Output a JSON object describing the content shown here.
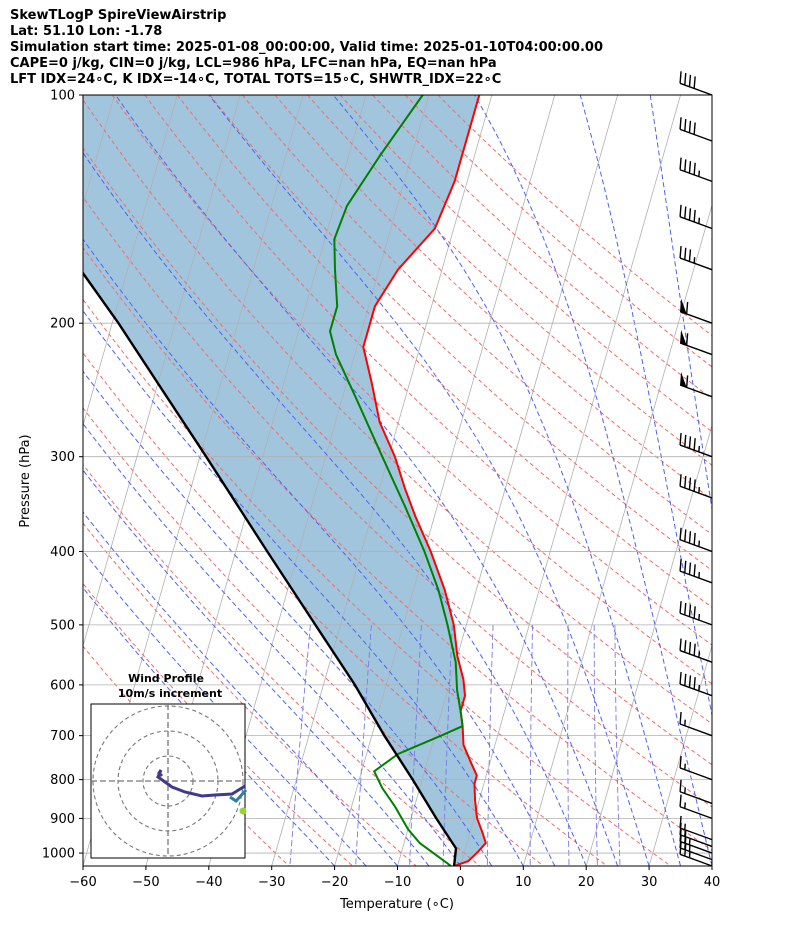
{
  "header": {
    "line1": "SkewTLogP SpireViewAirstrip",
    "line2": "Lat: 51.10   Lon: -1.78",
    "line3": "Simulation start time: 2025-01-08_00:00:00, Valid time: 2025-01-10T04:00:00.00",
    "line4": "CAPE=0 j/kg, CIN=0 j/kg, LCL=986 hPa, LFC=nan hPa, EQ=nan hPa",
    "line5": "LFT IDX=24∘C, K IDX=-14∘C, TOTAL TOTS=15∘C, SHWTR_IDX=22∘C"
  },
  "colors": {
    "temperature": "#ff0000",
    "dewpoint": "#008000",
    "parcel": "#000000",
    "cape_shading": "#a2c5de",
    "dry_adiabat": "#f26b6b",
    "moist_adiabat": "#4f62f2",
    "mixing_ratio": "#7a79e6",
    "isotherm": "#b0b0b0"
  },
  "chart_data": {
    "type": "line",
    "title": "",
    "xlabel": "Temperature (∘C)",
    "ylabel": "Pressure (hPa)",
    "xlim": [
      -60,
      40
    ],
    "ylim": [
      1040,
      100
    ],
    "y_scale": "log",
    "x_ticks": [
      "−60",
      "−50",
      "−40",
      "−30",
      "−20",
      "−10",
      "0",
      "10",
      "20",
      "30",
      "40"
    ],
    "y_ticks": [
      "100",
      "200",
      "300",
      "400",
      "500",
      "600",
      "700",
      "800",
      "900",
      "1000"
    ],
    "grid": true,
    "series": [
      {
        "name": "temperature",
        "points": [
          [
            1040,
            -1
          ],
          [
            1025,
            1
          ],
          [
            1000,
            2
          ],
          [
            970,
            3
          ],
          [
            940,
            2
          ],
          [
            900,
            0.5
          ],
          [
            850,
            -0.7
          ],
          [
            810,
            -1.5
          ],
          [
            790,
            -1.5
          ],
          [
            760,
            -3
          ],
          [
            720,
            -5
          ],
          [
            680,
            -6
          ],
          [
            650,
            -7
          ],
          [
            620,
            -7
          ],
          [
            590,
            -8
          ],
          [
            550,
            -10
          ],
          [
            500,
            -12
          ],
          [
            450,
            -15
          ],
          [
            400,
            -19
          ],
          [
            360,
            -23
          ],
          [
            330,
            -26
          ],
          [
            300,
            -29
          ],
          [
            270,
            -33
          ],
          [
            240,
            -36
          ],
          [
            215,
            -39
          ],
          [
            205,
            -39
          ],
          [
            190,
            -39
          ],
          [
            170,
            -37
          ],
          [
            150,
            -33
          ],
          [
            130,
            -32
          ],
          [
            100,
            -32
          ]
        ]
      },
      {
        "name": "dewpoint",
        "points": [
          [
            1040,
            -1.5
          ],
          [
            1010,
            -4
          ],
          [
            970,
            -7.5
          ],
          [
            930,
            -10
          ],
          [
            870,
            -13
          ],
          [
            820,
            -16
          ],
          [
            780,
            -18
          ],
          [
            740,
            -15
          ],
          [
            700,
            -9
          ],
          [
            680,
            -6
          ],
          [
            650,
            -7
          ],
          [
            610,
            -8.5
          ],
          [
            560,
            -10
          ],
          [
            500,
            -13
          ],
          [
            450,
            -16
          ],
          [
            400,
            -20
          ],
          [
            350,
            -25
          ],
          [
            300,
            -31
          ],
          [
            250,
            -38
          ],
          [
            220,
            -43
          ],
          [
            205,
            -45
          ],
          [
            190,
            -45
          ],
          [
            170,
            -47
          ],
          [
            155,
            -48.5
          ],
          [
            140,
            -48
          ],
          [
            120,
            -45
          ],
          [
            100,
            -41
          ]
        ]
      },
      {
        "name": "parcel",
        "points": [
          [
            1040,
            -1
          ],
          [
            986,
            -1.5
          ],
          [
            900,
            -6
          ],
          [
            800,
            -11.5
          ],
          [
            700,
            -18
          ],
          [
            600,
            -25
          ],
          [
            500,
            -34
          ],
          [
            400,
            -45
          ],
          [
            300,
            -59
          ],
          [
            250,
            -68
          ],
          [
            200,
            -79
          ],
          [
            150,
            -94
          ],
          [
            100,
            -115
          ]
        ]
      }
    ],
    "cape_cin_shading": "between parcel and temperature",
    "wind_barbs_pressures": [
      1040,
      1020,
      1000,
      980,
      960,
      900,
      860,
      800,
      700,
      620,
      560,
      500,
      440,
      400,
      340,
      300,
      250,
      220,
      200,
      170,
      150,
      130,
      115,
      100
    ],
    "wind_barbs_kt": [
      25,
      25,
      25,
      15,
      15,
      15,
      15,
      15,
      15,
      45,
      45,
      45,
      45,
      45,
      45,
      45,
      60,
      60,
      60,
      35,
      45,
      45,
      40,
      40
    ],
    "hodograph": {
      "title": "Wind Profile",
      "subtitle": "10m/s increment",
      "rings": 3
    }
  }
}
